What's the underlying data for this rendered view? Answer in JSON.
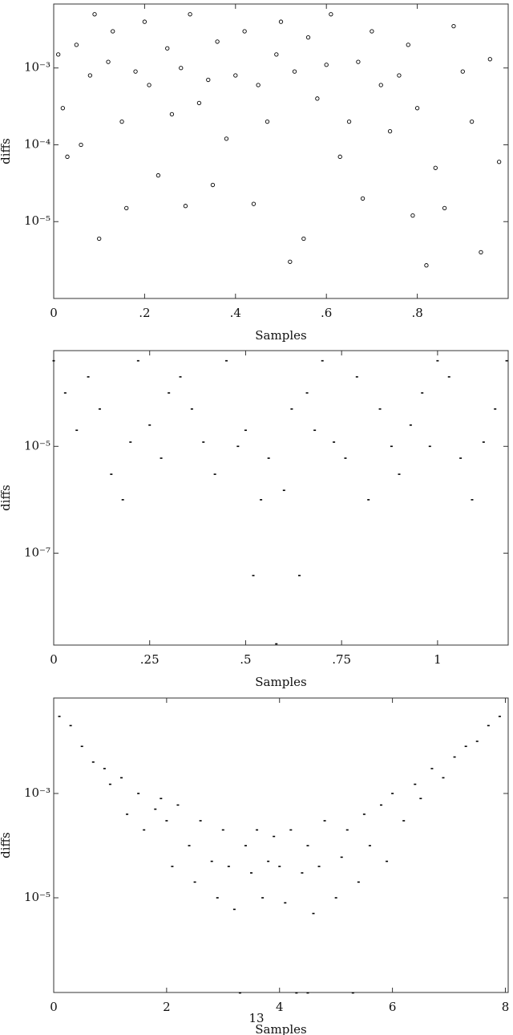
{
  "chart_data": [
    {
      "type": "scatter",
      "yscale": "log",
      "marker": "circle-open",
      "color": "#000000",
      "x_label": "Samples",
      "y_label": "diffs",
      "xlim": [
        0,
        1
      ],
      "ylim": [
        1e-06,
        0.0068
      ],
      "xticks": [
        0,
        {
          "value": 0.2,
          "label": ".2"
        },
        {
          "value": 0.4,
          "label": ".4"
        },
        {
          "value": 0.6,
          "label": ".6"
        },
        {
          "value": 0.8,
          "label": ".8"
        }
      ],
      "yticks": [
        {
          "value": 0.001,
          "label": "10⁻³"
        },
        {
          "value": 0.0001,
          "label": "10⁻⁴"
        },
        {
          "value": 1e-05,
          "label": "10⁻⁵"
        }
      ],
      "x": [
        0.01,
        0.02,
        0.03,
        0.05,
        0.06,
        0.08,
        0.09,
        0.1,
        0.12,
        0.13,
        0.15,
        0.16,
        0.18,
        0.2,
        0.21,
        0.23,
        0.25,
        0.26,
        0.28,
        0.29,
        0.3,
        0.32,
        0.34,
        0.35,
        0.36,
        0.38,
        0.4,
        0.42,
        0.44,
        0.45,
        0.47,
        0.49,
        0.5,
        0.52,
        0.53,
        0.55,
        0.56,
        0.58,
        0.6,
        0.61,
        0.63,
        0.65,
        0.67,
        0.68,
        0.7,
        0.72,
        0.74,
        0.76,
        0.78,
        0.79,
        0.8,
        0.82,
        0.84,
        0.86,
        0.88,
        0.9,
        0.92,
        0.94,
        0.96,
        0.98
      ],
      "values": [
        0.0015,
        0.0003,
        7e-05,
        0.002,
        0.0001,
        0.0008,
        0.005,
        6e-06,
        0.0012,
        0.003,
        0.0002,
        1.5e-05,
        0.0009,
        0.004,
        0.0006,
        4e-05,
        0.0018,
        0.00025,
        0.001,
        1.6e-05,
        0.005,
        0.00035,
        0.0007,
        3e-05,
        0.0022,
        0.00012,
        0.0008,
        0.003,
        1.7e-05,
        0.0006,
        0.0002,
        0.0015,
        0.004,
        3e-06,
        0.0009,
        6e-06,
        0.0025,
        0.0004,
        0.0011,
        0.005,
        7e-05,
        0.0002,
        0.0012,
        2e-05,
        0.003,
        0.0006,
        0.00015,
        0.0008,
        0.002,
        1.2e-05,
        0.0003,
        2.7e-06,
        5e-05,
        1.5e-05,
        0.0035,
        0.0009,
        0.0002,
        4e-06,
        0.0013,
        6e-05
      ]
    },
    {
      "type": "scatter",
      "yscale": "log",
      "marker": "dot",
      "color": "#000000",
      "x_label": "Samples",
      "y_label": "diffs",
      "xlim": [
        0,
        1.184
      ],
      "ylim": [
        1.9e-09,
        0.00062
      ],
      "xticks": [
        0,
        {
          "value": 0.25,
          "label": ".25"
        },
        {
          "value": 0.5,
          "label": ".5"
        },
        {
          "value": 0.75,
          "label": ".75"
        },
        1
      ],
      "yticks": [
        {
          "value": 1e-05,
          "label": "10⁻⁵"
        },
        {
          "value": 1e-07,
          "label": "10⁻⁷"
        }
      ],
      "x": [
        0,
        0.03,
        0.06,
        0.09,
        0.12,
        0.15,
        0.18,
        0.2,
        0.22,
        0.25,
        0.28,
        0.3,
        0.33,
        0.36,
        0.39,
        0.42,
        0.45,
        0.48,
        0.5,
        0.52,
        0.54,
        0.56,
        0.58,
        0.6,
        0.62,
        0.64,
        0.66,
        0.68,
        0.7,
        0.73,
        0.76,
        0.79,
        0.82,
        0.85,
        0.88,
        0.9,
        0.93,
        0.96,
        0.98,
        1.0,
        1.03,
        1.06,
        1.09,
        1.12,
        1.15,
        1.18
      ],
      "values": [
        0.0004,
        0.0001,
        2e-05,
        0.0002,
        5e-05,
        3e-06,
        1e-06,
        1.2e-05,
        0.0004,
        2.5e-05,
        6e-06,
        0.0001,
        0.0002,
        5e-05,
        1.2e-05,
        3e-06,
        0.0004,
        1e-05,
        2e-05,
        3.8e-08,
        1e-06,
        6e-06,
        2e-09,
        1.5e-06,
        5e-05,
        3.8e-08,
        0.0001,
        2e-05,
        0.0004,
        1.2e-05,
        6e-06,
        0.0002,
        1e-06,
        5e-05,
        1e-05,
        3e-06,
        2.5e-05,
        0.0001,
        1e-05,
        0.0004,
        0.0002,
        6e-06,
        1e-06,
        1.2e-05,
        5e-05,
        0.0004
      ]
    },
    {
      "type": "scatter",
      "yscale": "log",
      "marker": "dot",
      "color": "#000000",
      "x_label": "Samples",
      "y_label": "diffs",
      "xlim": [
        0,
        8.05
      ],
      "ylim": [
        1.53e-07,
        0.0676
      ],
      "xticks": [
        0,
        2,
        4,
        6,
        8
      ],
      "yticks": [
        {
          "value": 0.001,
          "label": "10⁻³"
        },
        {
          "value": 1e-05,
          "label": "10⁻⁵"
        }
      ],
      "x": [
        0.1,
        0.3,
        0.5,
        0.7,
        0.9,
        1.0,
        1.2,
        1.3,
        1.5,
        1.6,
        1.8,
        1.9,
        2.0,
        2.1,
        2.2,
        2.4,
        2.5,
        2.6,
        2.8,
        2.9,
        3.0,
        3.1,
        3.2,
        3.4,
        3.5,
        3.6,
        3.7,
        3.8,
        3.9,
        4.0,
        4.1,
        4.2,
        4.3,
        4.4,
        4.5,
        4.6,
        4.7,
        4.8,
        5.0,
        5.1,
        5.2,
        5.4,
        5.5,
        5.6,
        5.8,
        5.9,
        6.0,
        6.2,
        6.4,
        6.5,
        6.7,
        6.9,
        7.1,
        7.3,
        7.5,
        7.7,
        7.9,
        3.3,
        4.5,
        5.3
      ],
      "values": [
        0.03,
        0.02,
        0.008,
        0.004,
        0.003,
        0.0015,
        0.002,
        0.0004,
        0.001,
        0.0002,
        0.0005,
        0.0008,
        0.0003,
        4e-05,
        0.0006,
        0.0001,
        2e-05,
        0.0003,
        5e-05,
        1e-05,
        0.0002,
        4e-05,
        6e-06,
        0.0001,
        3e-05,
        0.0002,
        1e-05,
        5e-05,
        0.00015,
        4e-05,
        8e-06,
        0.0002,
        1.5e-07,
        3e-05,
        0.0001,
        5e-06,
        4e-05,
        0.0003,
        1e-05,
        6e-05,
        0.0002,
        2e-05,
        0.0004,
        0.0001,
        0.0006,
        5e-05,
        0.001,
        0.0003,
        0.0015,
        0.0008,
        0.003,
        0.002,
        0.005,
        0.008,
        0.01,
        0.02,
        0.03,
        1.5e-07,
        1.5e-07,
        1.5e-07
      ]
    }
  ],
  "page_number": "13"
}
